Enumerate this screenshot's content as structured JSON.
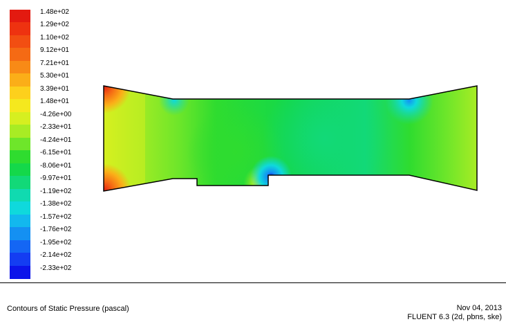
{
  "colorbar": {
    "colors": [
      "#e31a10",
      "#ee3210",
      "#f24e12",
      "#f56a14",
      "#f88a16",
      "#fbae18",
      "#fdd01c",
      "#f5e81e",
      "#d6ef20",
      "#a8ec24",
      "#6ee62a",
      "#2fdc2f",
      "#14d84a",
      "#12d978",
      "#10dab0",
      "#0fd9dc",
      "#12b8ee",
      "#1490f2",
      "#1466f4",
      "#143df2",
      "#0c14ea"
    ],
    "labels": [
      "1.48e+02",
      "1.29e+02",
      "1.10e+02",
      "9.12e+01",
      "7.21e+01",
      "5.30e+01",
      "3.39e+01",
      "1.48e+01",
      "-4.26e+00",
      "-2.33e+01",
      "-4.24e+01",
      "-6.15e+01",
      "-8.06e+01",
      "-9.97e+01",
      "-1.19e+02",
      "-1.38e+02",
      "-1.57e+02",
      "-1.76e+02",
      "-1.95e+02",
      "-2.14e+02",
      "-2.33e+02"
    ]
  },
  "footer": {
    "caption": "Contours of Static Pressure (pascal)",
    "date": "Nov 04, 2013",
    "solver": "FLUENT 6.3 (2d, pbns, ske)"
  }
}
